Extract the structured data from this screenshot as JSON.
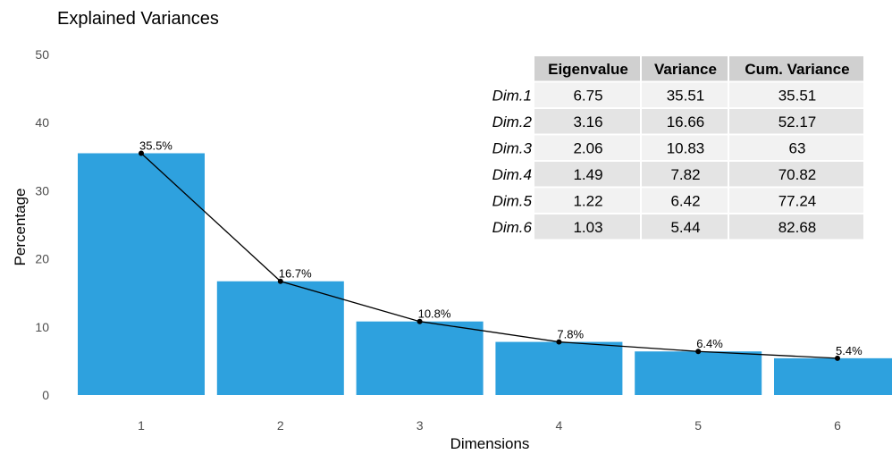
{
  "chart_data": {
    "type": "bar",
    "title": "Explained Variances",
    "xlabel": "Dimensions",
    "ylabel": "Percentage",
    "ylim": [
      0,
      50
    ],
    "yticks": [
      "0",
      "10",
      "20",
      "30",
      "40",
      "50"
    ],
    "categories": [
      "1",
      "2",
      "3",
      "4",
      "5",
      "6"
    ],
    "values": [
      35.5,
      16.7,
      10.8,
      7.8,
      6.4,
      5.4
    ],
    "data_labels": [
      "35.5%",
      "16.7%",
      "10.8%",
      "7.8%",
      "6.4%",
      "5.4%"
    ],
    "grid": false,
    "bar_color": "#2ea1de",
    "line_color": "#000000"
  },
  "table": {
    "headers": [
      "Eigenvalue",
      "Variance",
      "Cum. Variance"
    ],
    "rows": [
      {
        "label": "Dim.1",
        "cells": [
          "6.75",
          "35.51",
          "35.51"
        ]
      },
      {
        "label": "Dim.2",
        "cells": [
          "3.16",
          "16.66",
          "52.17"
        ]
      },
      {
        "label": "Dim.3",
        "cells": [
          "2.06",
          "10.83",
          "63"
        ]
      },
      {
        "label": "Dim.4",
        "cells": [
          "1.49",
          "7.82",
          "70.82"
        ]
      },
      {
        "label": "Dim.5",
        "cells": [
          "1.22",
          "6.42",
          "77.24"
        ]
      },
      {
        "label": "Dim.6",
        "cells": [
          "1.03",
          "5.44",
          "82.68"
        ]
      }
    ],
    "header_fill": "#d0d0d0",
    "row_fill_odd": "#f2f2f2",
    "row_fill_even": "#e4e4e4"
  }
}
